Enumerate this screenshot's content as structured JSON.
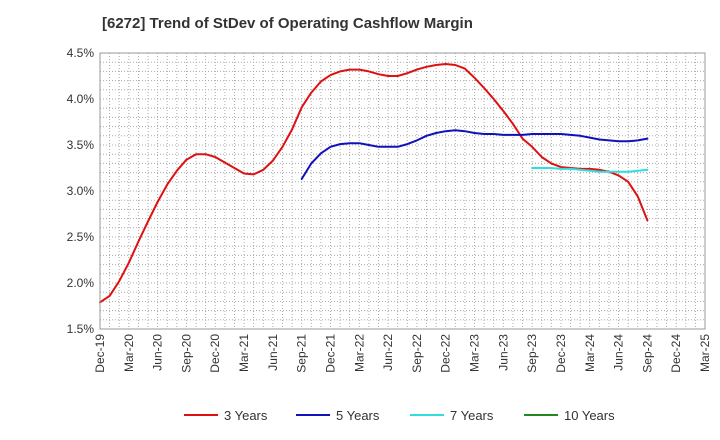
{
  "chart_data": {
    "type": "line",
    "title": "[6272]  Trend of StDev of Operating Cashflow Margin",
    "xlabel": "",
    "ylabel": "",
    "x_ticks": [
      "Dec-19",
      "Mar-20",
      "Jun-20",
      "Sep-20",
      "Dec-20",
      "Mar-21",
      "Jun-21",
      "Sep-21",
      "Dec-21",
      "Mar-22",
      "Jun-22",
      "Sep-22",
      "Dec-22",
      "Mar-23",
      "Jun-23",
      "Sep-23",
      "Dec-23",
      "Mar-24",
      "Jun-24",
      "Sep-24",
      "Dec-24",
      "Mar-25"
    ],
    "y_ticks": [
      "1.5%",
      "2.0%",
      "2.5%",
      "3.0%",
      "3.5%",
      "4.0%",
      "4.5%"
    ],
    "ylim": [
      1.5,
      4.5
    ],
    "y_unit": "%",
    "grid": true,
    "legend_position": "bottom",
    "series": [
      {
        "name": "3 Years",
        "color": "#dd1111",
        "x": [
          "Dec-19",
          "Jan-20",
          "Feb-20",
          "Mar-20",
          "Apr-20",
          "May-20",
          "Jun-20",
          "Jul-20",
          "Aug-20",
          "Sep-20",
          "Oct-20",
          "Nov-20",
          "Dec-20",
          "Jan-21",
          "Feb-21",
          "Mar-21",
          "Apr-21",
          "May-21",
          "Jun-21",
          "Jul-21",
          "Aug-21",
          "Sep-21",
          "Oct-21",
          "Nov-21",
          "Dec-21",
          "Jan-22",
          "Feb-22",
          "Mar-22",
          "Apr-22",
          "May-22",
          "Jun-22",
          "Jul-22",
          "Aug-22",
          "Sep-22",
          "Oct-22",
          "Nov-22",
          "Dec-22",
          "Jan-23",
          "Feb-23",
          "Mar-23",
          "Apr-23",
          "May-23",
          "Jun-23",
          "Jul-23",
          "Aug-23",
          "Sep-23",
          "Oct-23",
          "Nov-23",
          "Dec-23",
          "Jan-24",
          "Feb-24",
          "Mar-24",
          "Apr-24",
          "May-24",
          "Jun-24",
          "Jul-24",
          "Aug-24",
          "Sep-24"
        ],
        "values": [
          1.79,
          1.86,
          2.02,
          2.22,
          2.45,
          2.67,
          2.88,
          3.07,
          3.22,
          3.34,
          3.4,
          3.4,
          3.37,
          3.31,
          3.25,
          3.19,
          3.18,
          3.23,
          3.33,
          3.48,
          3.67,
          3.91,
          4.07,
          4.19,
          4.26,
          4.3,
          4.32,
          4.32,
          4.3,
          4.27,
          4.25,
          4.25,
          4.28,
          4.32,
          4.35,
          4.37,
          4.38,
          4.37,
          4.33,
          4.23,
          4.12,
          4.0,
          3.87,
          3.73,
          3.57,
          3.48,
          3.37,
          3.3,
          3.26,
          3.25,
          3.24,
          3.24,
          3.23,
          3.21,
          3.17,
          3.1,
          2.94,
          2.68
        ]
      },
      {
        "name": "5 Years",
        "color": "#1111bb",
        "x": [
          "Sep-21",
          "Oct-21",
          "Nov-21",
          "Dec-21",
          "Jan-22",
          "Feb-22",
          "Mar-22",
          "Apr-22",
          "May-22",
          "Jun-22",
          "Jul-22",
          "Aug-22",
          "Sep-22",
          "Oct-22",
          "Nov-22",
          "Dec-22",
          "Jan-23",
          "Feb-23",
          "Mar-23",
          "Apr-23",
          "May-23",
          "Jun-23",
          "Jul-23",
          "Aug-23",
          "Sep-23",
          "Oct-23",
          "Nov-23",
          "Dec-23",
          "Jan-24",
          "Feb-24",
          "Mar-24",
          "Apr-24",
          "May-24",
          "Jun-24",
          "Jul-24",
          "Aug-24",
          "Sep-24"
        ],
        "values": [
          3.13,
          3.3,
          3.41,
          3.48,
          3.51,
          3.52,
          3.52,
          3.5,
          3.48,
          3.48,
          3.48,
          3.51,
          3.55,
          3.6,
          3.63,
          3.65,
          3.66,
          3.65,
          3.63,
          3.62,
          3.62,
          3.61,
          3.61,
          3.61,
          3.62,
          3.62,
          3.62,
          3.62,
          3.61,
          3.6,
          3.58,
          3.56,
          3.55,
          3.54,
          3.54,
          3.55,
          3.57
        ]
      },
      {
        "name": "7 Years",
        "color": "#33dddd",
        "x": [
          "Sep-23",
          "Oct-23",
          "Nov-23",
          "Dec-23",
          "Jan-24",
          "Feb-24",
          "Mar-24",
          "Apr-24",
          "May-24",
          "Jun-24",
          "Jul-24",
          "Aug-24",
          "Sep-24"
        ],
        "values": [
          3.25,
          3.25,
          3.25,
          3.24,
          3.24,
          3.23,
          3.22,
          3.21,
          3.21,
          3.21,
          3.21,
          3.22,
          3.23
        ]
      },
      {
        "name": "10 Years",
        "color": "#228822",
        "x": [],
        "values": []
      }
    ]
  }
}
